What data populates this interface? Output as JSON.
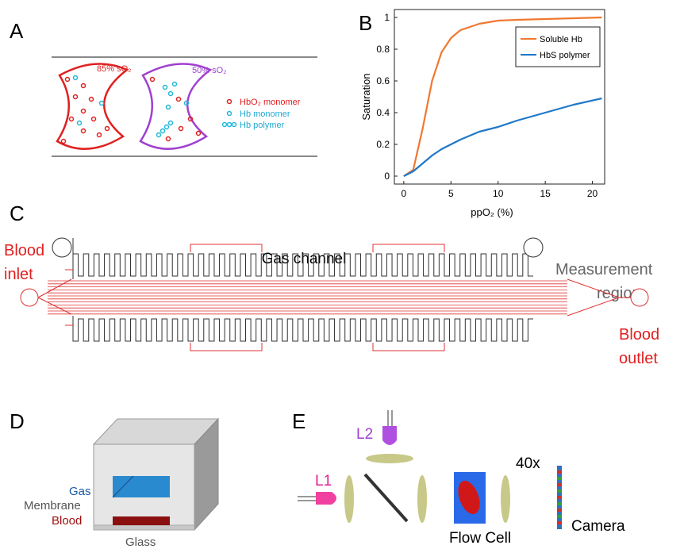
{
  "panels": {
    "labels": [
      "A",
      "B",
      "C",
      "D",
      "E"
    ],
    "a": {
      "cell1": "85% sO₂",
      "cell2": "50% sO₂",
      "legend": [
        "HbO₂ monomer",
        "Hb monomer",
        "Hb polymer"
      ]
    },
    "c": {
      "gas": "Gas channel",
      "inlet": [
        "Blood",
        "inlet"
      ],
      "measure": [
        "Measurement",
        "region"
      ],
      "outlet": [
        "Blood",
        "outlet"
      ]
    },
    "d": {
      "gas": "Gas",
      "membrane": "Membrane",
      "blood": "Blood",
      "glass": "Glass"
    },
    "e": {
      "l2": "L2",
      "l1": "L1",
      "mag": "40x",
      "flow": "Flow Cell",
      "camera": "Camera"
    }
  },
  "chart_data": {
    "type": "line",
    "xlabel": "ppO₂ (%)",
    "ylabel": "Saturation",
    "x": [
      0,
      1,
      2,
      3,
      4,
      5,
      6,
      8,
      10,
      12,
      15,
      18,
      21
    ],
    "series": [
      {
        "name": "Soluble Hb",
        "color": "#f07830",
        "values": [
          0,
          0.04,
          0.3,
          0.6,
          0.78,
          0.87,
          0.92,
          0.96,
          0.98,
          0.985,
          0.99,
          0.995,
          1.0
        ]
      },
      {
        "name": "HbS polymer",
        "color": "#1f78c8",
        "values": [
          0,
          0.03,
          0.08,
          0.13,
          0.17,
          0.2,
          0.23,
          0.28,
          0.31,
          0.35,
          0.4,
          0.45,
          0.49
        ]
      }
    ],
    "xlim": [
      -1,
      21.3
    ],
    "ylim": [
      -0.05,
      1.05
    ],
    "xticks": [
      0,
      5,
      10,
      15,
      20
    ],
    "yticks": [
      0,
      0.2,
      0.4,
      0.6,
      0.8,
      1
    ],
    "legend": "upper right"
  }
}
